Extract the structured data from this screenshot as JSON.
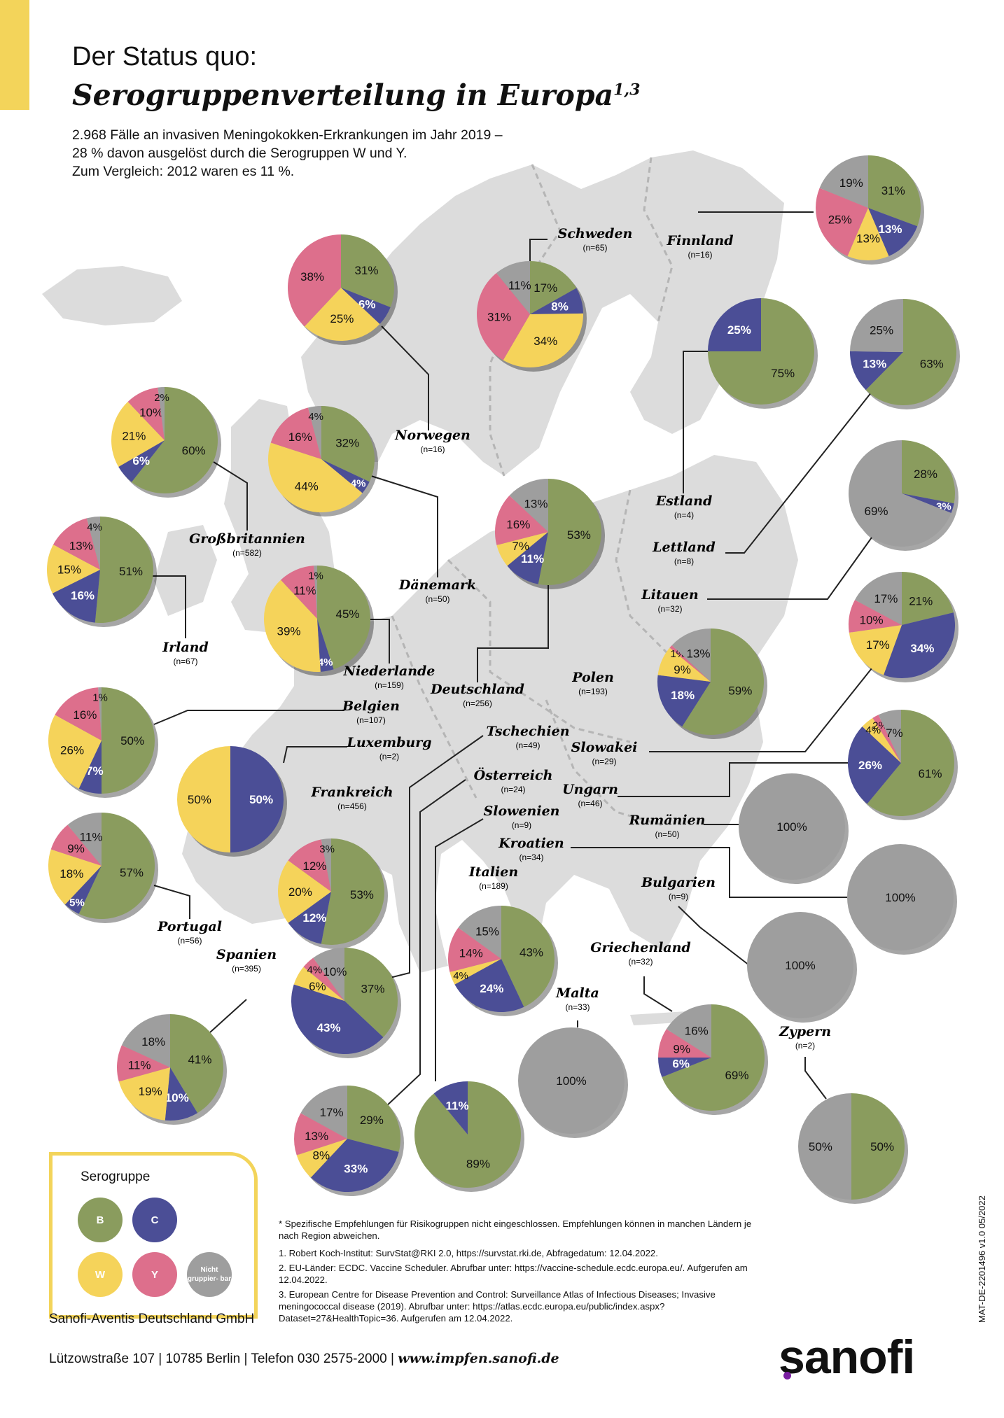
{
  "header": {
    "title_line1": "Der Status quo:",
    "title_line2": "Serogruppenverteilung in Europa",
    "title_sup": "1,3",
    "intro_lines": [
      "2.968 Fälle an invasiven Meningokokken-Erkrankungen im Jahr 2019 –",
      "28 % davon ausgelöst durch die Serogruppen W und Y.",
      "Zum Vergleich: 2012 waren es 11 %."
    ]
  },
  "colors": {
    "B": "#8a9c5e",
    "C": "#4b4e96",
    "W": "#f5d35a",
    "Y": "#dd6f8c",
    "N": "#9e9e9e",
    "map": "#dcdcdc"
  },
  "chart_data": {
    "type": "pie",
    "groups": [
      "B",
      "C",
      "W",
      "Y",
      "N"
    ],
    "countries": [
      {
        "name": "Finnland",
        "n": "(n=16)",
        "values": {
          "B": 31,
          "C": 13,
          "W": 13,
          "Y": 25,
          "N": 19
        }
      },
      {
        "name": "Schweden",
        "n": "(n=65)",
        "values": {
          "B": 17,
          "C": 8,
          "W": 34,
          "Y": 31,
          "N": 11
        }
      },
      {
        "name": "Norwegen",
        "n": "(n=16)",
        "values": {
          "B": 31,
          "C": 6,
          "W": 25,
          "Y": 38
        }
      },
      {
        "name": "Estland",
        "n": "(n=4)",
        "values": {
          "B": 75,
          "C": 25
        }
      },
      {
        "name": "Lettland",
        "n": "(n=8)",
        "values": {
          "B": 63,
          "C": 13,
          "N": 25
        }
      },
      {
        "name": "Litauen",
        "n": "(n=32)",
        "values": {
          "B": 28,
          "C": 3,
          "N": 69
        }
      },
      {
        "name": "Großbritannien",
        "n": "(n=582)",
        "values": {
          "B": 60,
          "C": 6,
          "W": 21,
          "Y": 10,
          "N": 2
        }
      },
      {
        "name": "Dänemark",
        "n": "(n=50)",
        "values": {
          "B": 32,
          "C": 4,
          "W": 44,
          "Y": 16,
          "N": 4
        }
      },
      {
        "name": "Deutschland",
        "n": "(n=256)",
        "values": {
          "B": 53,
          "C": 11,
          "W": 7,
          "Y": 16,
          "N": 13
        }
      },
      {
        "name": "Irland",
        "n": "(n=67)",
        "values": {
          "B": 51,
          "C": 16,
          "W": 15,
          "Y": 13,
          "N": 4
        }
      },
      {
        "name": "Niederlande",
        "n": "(n=159)",
        "values": {
          "B": 45,
          "C": 4,
          "W": 39,
          "Y": 11,
          "N": 1
        }
      },
      {
        "name": "Polen",
        "n": "(n=193)",
        "values": {
          "B": 59,
          "C": 18,
          "W": 9,
          "Y": 1,
          "N": 13
        }
      },
      {
        "name": "Slowakei",
        "n": "(n=29)",
        "values": {
          "B": 21,
          "C": 34,
          "W": 17,
          "Y": 10,
          "N": 17
        }
      },
      {
        "name": "Belgien",
        "n": "(n=107)",
        "values": {
          "B": 50,
          "C": 7,
          "W": 26,
          "Y": 16,
          "N": 1
        }
      },
      {
        "name": "Luxemburg",
        "n": "(n=2)",
        "values": {
          "C": 50,
          "W": 50
        }
      },
      {
        "name": "Ungarn",
        "n": "(n=46)",
        "values": {
          "B": 61,
          "C": 26,
          "W": 4,
          "Y": 2,
          "N": 7
        }
      },
      {
        "name": "Frankreich",
        "n": "(n=456)",
        "values": {
          "B": 53,
          "C": 12,
          "W": 20,
          "Y": 12,
          "N": 3
        }
      },
      {
        "name": "Rumänien",
        "n": "(n=50)",
        "values": {
          "N": 100
        }
      },
      {
        "name": "Portugal",
        "n": "(n=56)",
        "values": {
          "B": 57,
          "C": 5,
          "W": 18,
          "Y": 9,
          "N": 11
        }
      },
      {
        "name": "Kroatien",
        "n": "(n=34)",
        "values": {
          "N": 100
        }
      },
      {
        "name": "Bulgarien",
        "n": "(n=9)",
        "values": {
          "N": 100
        }
      },
      {
        "name": "Italien",
        "n": "(n=189)",
        "values": {
          "B": 43,
          "C": 24,
          "W": 4,
          "Y": 14,
          "N": 15
        }
      },
      {
        "name": "Tschechien",
        "n": "(n=49)",
        "values": {
          "B": 37,
          "C": 43,
          "W": 6,
          "Y": 4,
          "N": 10
        }
      },
      {
        "name": "Spanien",
        "n": "(n=395)",
        "values": {
          "B": 41,
          "C": 10,
          "W": 19,
          "Y": 11,
          "N": 18
        }
      },
      {
        "name": "Malta",
        "n": "(n=33)",
        "values": {
          "N": 100
        }
      },
      {
        "name": "Griechenland",
        "n": "(n=32)",
        "values": {
          "B": 69,
          "C": 6,
          "Y": 9,
          "N": 16
        }
      },
      {
        "name": "Österreich",
        "n": "(n=24)",
        "values": {
          "B": 29,
          "C": 33,
          "W": 8,
          "Y": 13,
          "N": 17
        }
      },
      {
        "name": "Slowenien",
        "n": "(n=9)",
        "values": {
          "B": 89,
          "C": 11
        }
      },
      {
        "name": "Zypern",
        "n": "(n=2)",
        "values": {
          "B": 50,
          "N": 50
        }
      }
    ]
  },
  "legend": {
    "title": "Serogruppe",
    "items": [
      {
        "label": "B",
        "color": "#8a9c5e"
      },
      {
        "label": "C",
        "color": "#4b4e96"
      },
      {
        "label": "W",
        "color": "#f5d35a"
      },
      {
        "label": "Y",
        "color": "#dd6f8c"
      },
      {
        "label": "Nicht gruppier- bar",
        "color": "#9e9e9e"
      }
    ]
  },
  "footnotes": {
    "star": "* Spezifische Empfehlungen für Risikogruppen nicht eingeschlossen. Empfehlungen können in manchen Ländern je nach Region abweichen.",
    "items": [
      "1. Robert Koch-Institut: SurvStat@RKI 2.0, https://survstat.rki.de, Abfragedatum: 12.04.2022.",
      "2. EU-Länder: ECDC. Vaccine Scheduler. Abrufbar unter: https://vaccine-schedule.ecdc.europa.eu/. Aufgerufen am 12.04.2022.",
      "3. European Centre for Disease Prevention and Control: Surveillance Atlas of Infectious Diseases; Invasive meningococcal disease (2019). Abrufbar unter: https://atlas.ecdc.europa.eu/public/index.aspx?Dataset=27&HealthTopic=36. Aufgerufen am 12.04.2022."
    ]
  },
  "footer": {
    "company": "Sanofi-Aventis Deutschland GmbH",
    "address": "Lützowstraße 107 | 10785 Berlin | Telefon 030 2575-2000 | ",
    "website": "www.impfen.sanofi.de",
    "logo": "sanofi",
    "doc_id": "MAT-DE-2201496 v1.0 05/2022"
  }
}
